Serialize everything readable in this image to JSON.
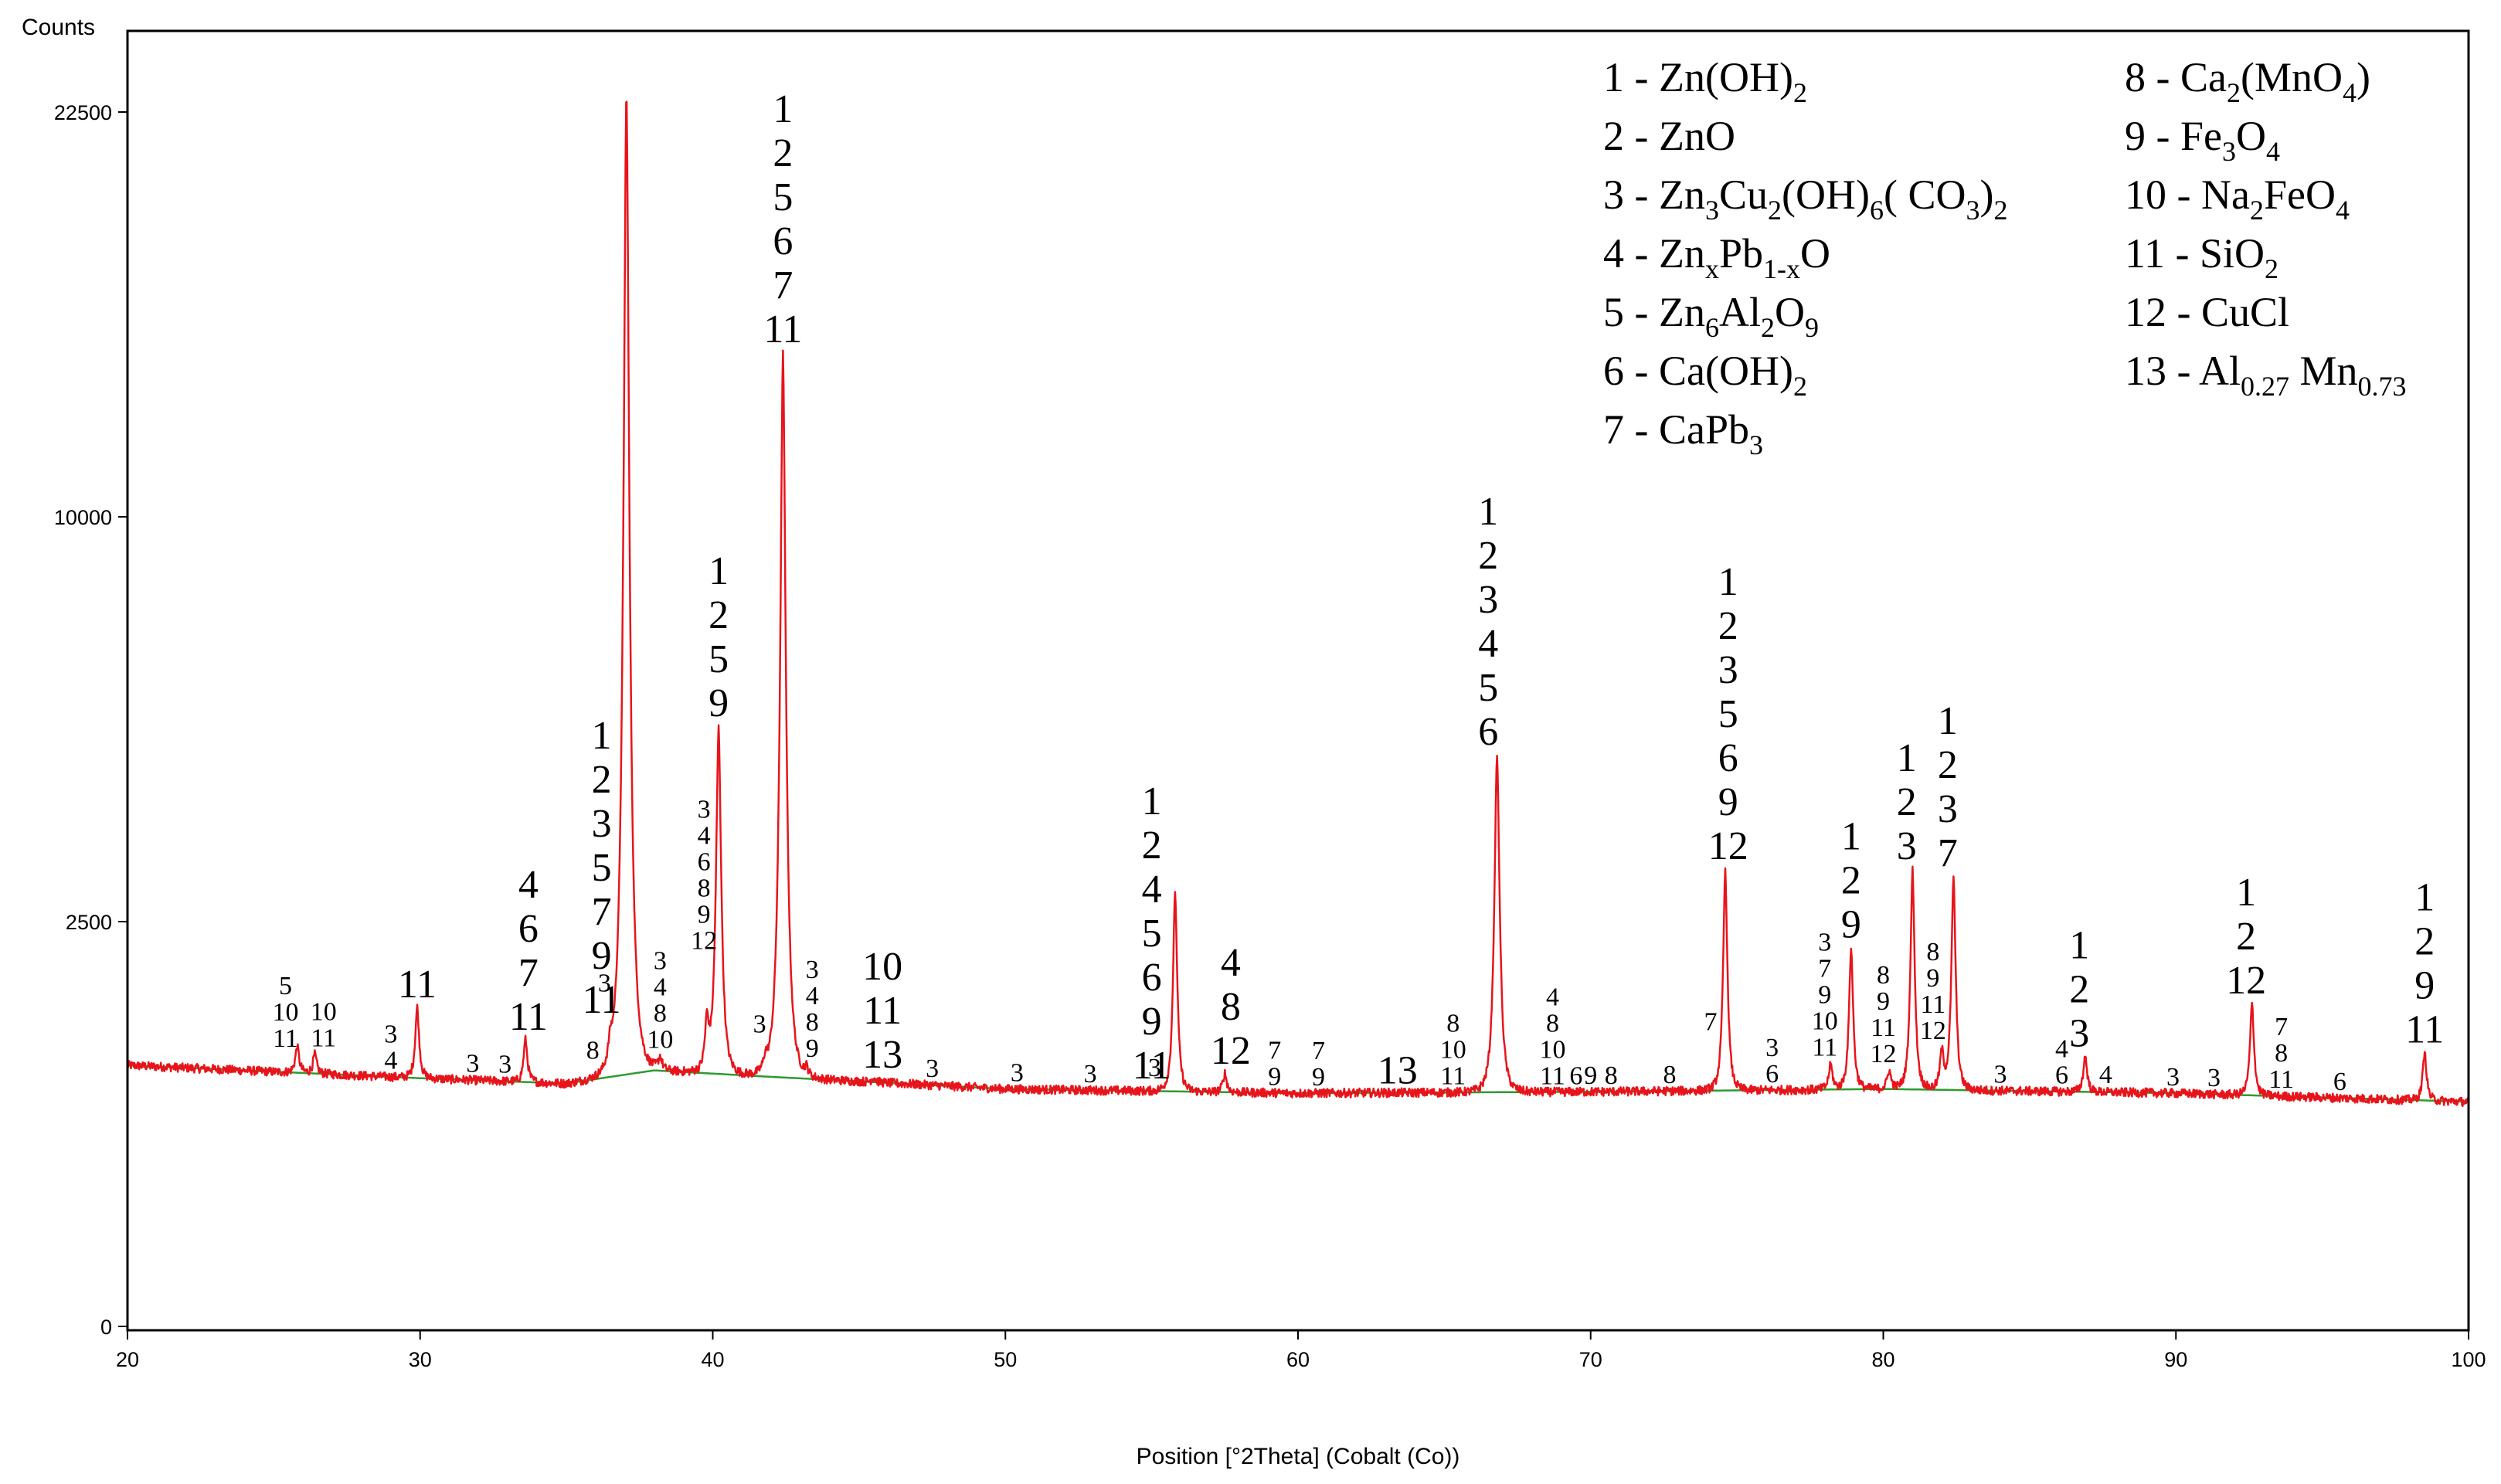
{
  "chart_data": {
    "type": "line",
    "xlabel": "Position [°2Theta] (Cobalt (Co))",
    "ylabel": "Counts",
    "xlim": [
      20,
      100
    ],
    "x_ticks": [
      20,
      30,
      40,
      50,
      60,
      70,
      80,
      90,
      100
    ],
    "y_ticks": [
      0,
      2500,
      10000,
      22500
    ],
    "y_scale": "sqrt",
    "grid": false,
    "line_colors": {
      "pattern": "#e8141b",
      "background": "#2f9a2f"
    },
    "peaks": [
      {
        "x": 25.8,
        "y": 1200
      },
      {
        "x": 26.4,
        "y": 1130
      },
      {
        "x": 29.9,
        "y": 1560
      },
      {
        "x": 33.6,
        "y": 1260
      },
      {
        "x": 36.5,
        "y": 1120
      },
      {
        "x": 37.05,
        "y": 23500
      },
      {
        "x": 38.2,
        "y": 1100
      },
      {
        "x": 39.8,
        "y": 1400
      },
      {
        "x": 40.2,
        "y": 5500
      },
      {
        "x": 41.8,
        "y": 1050
      },
      {
        "x": 42.4,
        "y": 14500
      },
      {
        "x": 43.2,
        "y": 1000
      },
      {
        "x": 45.5,
        "y": 950
      },
      {
        "x": 55.8,
        "y": 2900
      },
      {
        "x": 57.5,
        "y": 980
      },
      {
        "x": 66.8,
        "y": 5000
      },
      {
        "x": 74.6,
        "y": 3200
      },
      {
        "x": 78.2,
        "y": 1050
      },
      {
        "x": 78.9,
        "y": 2200
      },
      {
        "x": 80.2,
        "y": 1000
      },
      {
        "x": 81.0,
        "y": 3200
      },
      {
        "x": 82.0,
        "y": 1150
      },
      {
        "x": 82.4,
        "y": 3100
      },
      {
        "x": 86.9,
        "y": 1120
      },
      {
        "x": 92.6,
        "y": 1600
      },
      {
        "x": 98.5,
        "y": 1150
      }
    ],
    "background_points": [
      [
        20,
        1040
      ],
      [
        30,
        940
      ],
      [
        35,
        900
      ],
      [
        38,
        1000
      ],
      [
        42,
        950
      ],
      [
        50,
        860
      ],
      [
        60,
        830
      ],
      [
        70,
        840
      ],
      [
        80,
        860
      ],
      [
        90,
        830
      ],
      [
        100,
        770
      ]
    ],
    "peak_annotations": [
      {
        "x": 25.4,
        "lines": [
          "5",
          "10",
          "11"
        ],
        "size": "small"
      },
      {
        "x": 26.7,
        "lines": [
          "10",
          "11"
        ],
        "size": "small"
      },
      {
        "x": 29.0,
        "lines": [
          "3",
          "4"
        ],
        "size": "small"
      },
      {
        "x": 29.9,
        "lines": [
          "11"
        ],
        "size": "large"
      },
      {
        "x": 31.8,
        "lines": [
          "3"
        ],
        "size": "small"
      },
      {
        "x": 32.9,
        "lines": [
          "3"
        ],
        "size": "small"
      },
      {
        "x": 33.7,
        "lines": [
          "4",
          "6",
          "7",
          "11"
        ],
        "size": "large"
      },
      {
        "x": 35.9,
        "lines": [
          "8"
        ],
        "size": "small"
      },
      {
        "x": 36.3,
        "lines": [
          "3"
        ],
        "size": "small"
      },
      {
        "x": 36.2,
        "lines": [
          "1",
          "2",
          "3",
          "5",
          "7",
          "9",
          "11"
        ],
        "size": "large"
      },
      {
        "x": 38.2,
        "lines": [
          "3",
          "4",
          "8",
          "10"
        ],
        "size": "small"
      },
      {
        "x": 39.7,
        "lines": [
          "3",
          "4",
          "6",
          "8",
          "9",
          "12"
        ],
        "size": "small"
      },
      {
        "x": 40.2,
        "lines": [
          "1",
          "2",
          "5",
          "9"
        ],
        "size": "large"
      },
      {
        "x": 41.6,
        "lines": [
          "3"
        ],
        "size": "small"
      },
      {
        "x": 42.4,
        "lines": [
          "1",
          "2",
          "5",
          "6",
          "7",
          "11"
        ],
        "size": "large"
      },
      {
        "x": 43.4,
        "lines": [
          "3",
          "4",
          "8",
          "9"
        ],
        "size": "small"
      },
      {
        "x": 45.8,
        "lines": [
          "10",
          "11",
          "13"
        ],
        "size": "large"
      },
      {
        "x": 47.5,
        "lines": [
          "3"
        ],
        "size": "small"
      },
      {
        "x": 50.4,
        "lines": [
          "3"
        ],
        "size": "small"
      },
      {
        "x": 52.9,
        "lines": [
          "3"
        ],
        "size": "small"
      },
      {
        "x": 55.1,
        "lines": [
          "3"
        ],
        "size": "small"
      },
      {
        "x": 55.0,
        "lines": [
          "1",
          "2",
          "4",
          "5",
          "6",
          "9",
          "11"
        ],
        "size": "large"
      },
      {
        "x": 57.7,
        "lines": [
          "4",
          "8",
          "12"
        ],
        "size": "large"
      },
      {
        "x": 59.2,
        "lines": [
          "7",
          "9"
        ],
        "size": "small"
      },
      {
        "x": 60.7,
        "lines": [
          "7",
          "9"
        ],
        "size": "small"
      },
      {
        "x": 63.4,
        "lines": [
          "13"
        ],
        "size": "large"
      },
      {
        "x": 65.3,
        "lines": [
          "8",
          "10",
          "11"
        ],
        "size": "small"
      },
      {
        "x": 66.5,
        "lines": [
          "1",
          "2",
          "3",
          "4",
          "5",
          "6"
        ],
        "size": "large"
      },
      {
        "x": 68.7,
        "lines": [
          "4",
          "8",
          "10",
          "11"
        ],
        "size": "small"
      },
      {
        "x": 69.5,
        "lines": [
          "6"
        ],
        "size": "small"
      },
      {
        "x": 70.0,
        "lines": [
          "9"
        ],
        "size": "small"
      },
      {
        "x": 70.7,
        "lines": [
          "8"
        ],
        "size": "small"
      },
      {
        "x": 72.7,
        "lines": [
          "8"
        ],
        "size": "small"
      },
      {
        "x": 74.1,
        "lines": [
          "7"
        ],
        "size": "small"
      },
      {
        "x": 74.7,
        "lines": [
          "1",
          "2",
          "3",
          "5",
          "6",
          "9",
          "12"
        ],
        "size": "large"
      },
      {
        "x": 76.2,
        "lines": [
          "3",
          "6"
        ],
        "size": "small"
      },
      {
        "x": 78.0,
        "lines": [
          "3",
          "7",
          "9",
          "10",
          "11"
        ],
        "size": "small"
      },
      {
        "x": 78.9,
        "lines": [
          "1",
          "2",
          "9"
        ],
        "size": "large"
      },
      {
        "x": 80.0,
        "lines": [
          "8",
          "9",
          "11",
          "12"
        ],
        "size": "small"
      },
      {
        "x": 80.8,
        "lines": [
          "1",
          "2",
          "3"
        ],
        "size": "large"
      },
      {
        "x": 81.7,
        "lines": [
          "8",
          "9",
          "11",
          "12"
        ],
        "size": "small"
      },
      {
        "x": 82.2,
        "lines": [
          "1",
          "2",
          "3",
          "7"
        ],
        "size": "large"
      },
      {
        "x": 84.0,
        "lines": [
          "3"
        ],
        "size": "small"
      },
      {
        "x": 86.1,
        "lines": [
          "4",
          "6"
        ],
        "size": "small"
      },
      {
        "x": 86.7,
        "lines": [
          "1",
          "2",
          "3"
        ],
        "size": "large"
      },
      {
        "x": 87.6,
        "lines": [
          "4"
        ],
        "size": "small"
      },
      {
        "x": 89.9,
        "lines": [
          "3"
        ],
        "size": "small"
      },
      {
        "x": 91.3,
        "lines": [
          "3"
        ],
        "size": "small"
      },
      {
        "x": 92.4,
        "lines": [
          "1",
          "2",
          "12"
        ],
        "size": "large"
      },
      {
        "x": 93.6,
        "lines": [
          "7",
          "8",
          "11"
        ],
        "size": "small"
      },
      {
        "x": 95.6,
        "lines": [
          "6"
        ],
        "size": "small"
      },
      {
        "x": 98.5,
        "lines": [
          "1",
          "2",
          "9",
          "11"
        ],
        "size": "large"
      }
    ],
    "legend": {
      "placement": "top-right",
      "columns": [
        [
          [
            {
              "t": "1 - Zn(OH)"
            },
            {
              "t": "2",
              "s": "sub"
            }
          ],
          [
            {
              "t": "2 - ZnO"
            }
          ],
          [
            {
              "t": "3 - Zn"
            },
            {
              "t": "3",
              "s": "sub"
            },
            {
              "t": "Cu"
            },
            {
              "t": "2",
              "s": "sub"
            },
            {
              "t": "(OH)"
            },
            {
              "t": "6",
              "s": "sub"
            },
            {
              "t": "( CO"
            },
            {
              "t": "3",
              "s": "sub"
            },
            {
              "t": ")"
            },
            {
              "t": "2",
              "s": "sub"
            }
          ],
          [
            {
              "t": "4 - Zn"
            },
            {
              "t": "x",
              "s": "sub"
            },
            {
              "t": "Pb"
            },
            {
              "t": "1-x",
              "s": "sub"
            },
            {
              "t": "O"
            }
          ],
          [
            {
              "t": "5 - Zn"
            },
            {
              "t": "6",
              "s": "sub"
            },
            {
              "t": "Al"
            },
            {
              "t": "2",
              "s": "sub"
            },
            {
              "t": "O"
            },
            {
              "t": "9",
              "s": "sub"
            }
          ],
          [
            {
              "t": "6 - Ca(OH)"
            },
            {
              "t": "2",
              "s": "sub"
            }
          ],
          [
            {
              "t": "7 - CaPb"
            },
            {
              "t": "3",
              "s": "sub"
            }
          ]
        ],
        [
          [
            {
              "t": "8 - Ca"
            },
            {
              "t": "2",
              "s": "sub"
            },
            {
              "t": "(MnO"
            },
            {
              "t": "4",
              "s": "sub"
            },
            {
              "t": ")"
            }
          ],
          [
            {
              "t": "9 - Fe"
            },
            {
              "t": "3",
              "s": "sub"
            },
            {
              "t": "O"
            },
            {
              "t": "4",
              "s": "sub"
            }
          ],
          [
            {
              "t": "10 - Na"
            },
            {
              "t": "2",
              "s": "sub"
            },
            {
              "t": "FeO"
            },
            {
              "t": "4",
              "s": "sub"
            }
          ],
          [
            {
              "t": "11 - SiO"
            },
            {
              "t": "2",
              "s": "sub"
            }
          ],
          [
            {
              "t": "12 - CuCl"
            }
          ],
          [
            {
              "t": "13 - Al"
            },
            {
              "t": "0.27",
              "s": "sub"
            },
            {
              "t": " Mn"
            },
            {
              "t": "0.73",
              "s": "sub"
            }
          ]
        ]
      ]
    }
  }
}
